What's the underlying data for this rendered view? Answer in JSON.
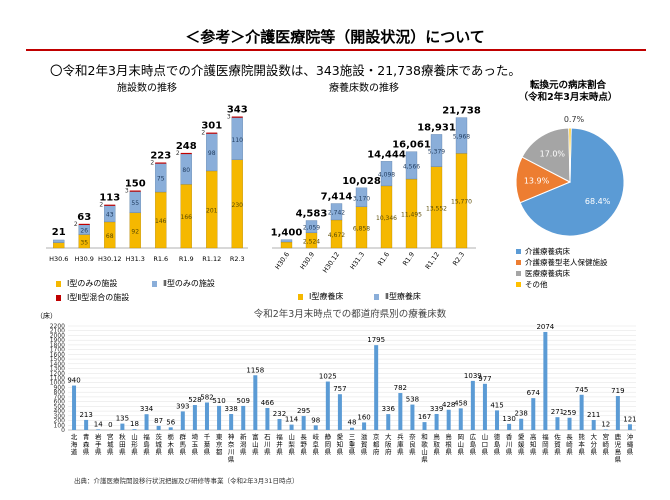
{
  "slide": {
    "title": "＜参考＞介護医療院等（開設状況）について",
    "lead": "〇令和2年3月末時点での介護医療院開設数は、343施設・21,738療養床であった。",
    "source": "出典：介護医療院開設移行状況把握及び研修等事業（令和2年3月31日時点）"
  },
  "colors": {
    "type1": "#f5b800",
    "type2": "#8aaed9",
    "mixed": "#c00000",
    "pie_kaigo_ryoyo": "#5b9bd5",
    "pie_rojin_hoken": "#ed7d31",
    "pie_iryo_ryoyo": "#a5a5a5",
    "pie_other": "#ffc000",
    "pref_bar": "#5b9bd5",
    "accent_rule": "#c00000"
  },
  "chart_data": [
    {
      "type": "bar",
      "title": "施設数の推移",
      "categories": [
        "H30.6",
        "H30.9",
        "H30.12",
        "H31.3",
        "R1.6",
        "R1.9",
        "R1.12",
        "R2.3"
      ],
      "series": [
        {
          "name": "Ⅰ型のみの施設",
          "values": [
            14,
            35,
            68,
            92,
            146,
            166,
            201,
            230
          ]
        },
        {
          "name": "Ⅱ型のみの施設",
          "values": [
            7,
            26,
            43,
            55,
            75,
            80,
            98,
            110
          ]
        },
        {
          "name": "Ⅰ型Ⅱ型混合の施設",
          "values": [
            0,
            2,
            2,
            3,
            2,
            2,
            2,
            3
          ]
        }
      ],
      "totals": [
        21,
        63,
        113,
        150,
        223,
        248,
        301,
        343
      ],
      "legend": [
        "Ⅰ型のみの施設",
        "Ⅱ型のみの施設",
        "Ⅰ型Ⅱ型混合の施設"
      ],
      "legend_position": "bottom",
      "ylim": [
        0,
        360
      ]
    },
    {
      "type": "bar",
      "title": "療養床数の推移",
      "categories": [
        "H30.6",
        "H30.9",
        "H30.12",
        "H31.3",
        "R1.6",
        "R1.9",
        "R1.12",
        "R2.3"
      ],
      "series": [
        {
          "name": "Ⅰ型療養床",
          "values": [
            1000,
            2524,
            4672,
            6858,
            10346,
            11495,
            13552,
            15770
          ]
        },
        {
          "name": "Ⅱ型療養床",
          "values": [
            400,
            2059,
            2742,
            3170,
            4098,
            4566,
            5379,
            5968
          ]
        }
      ],
      "totals_labels": [
        "1,400",
        "4,583",
        "7,414",
        "10,028",
        "14,444",
        "16,061",
        "18,931",
        "21,738"
      ],
      "series_labels": {
        "type1": [
          "",
          "2,524",
          "4,672",
          "6,858",
          "10,346",
          "11,495",
          "13,552",
          "15,770"
        ],
        "type2": [
          "",
          "2,059",
          "2,742",
          "3,170",
          "4,098",
          "4,566",
          "5,379",
          "5,968"
        ]
      },
      "totals": [
        1400,
        4583,
        7414,
        10028,
        14444,
        16061,
        18931,
        21738
      ],
      "legend": [
        "Ⅰ型療養床",
        "Ⅱ型療養床"
      ],
      "legend_position": "bottom",
      "ylim": [
        0,
        23000
      ]
    },
    {
      "type": "pie",
      "title": "転換元の病床割合\n（令和2年3月末時点）",
      "title_lines": [
        "転換元の病床割合",
        "（令和2年3月末時点）"
      ],
      "labels": [
        "介護療養病床",
        "介護療養型老人保健施設",
        "医療療養病床",
        "その他"
      ],
      "values": [
        68.4,
        13.9,
        17.0,
        0.7
      ],
      "value_labels": [
        "68.4%",
        "13.9%",
        "17.0%",
        "0.7%"
      ],
      "legend_position": "bottom"
    },
    {
      "type": "bar",
      "title": "令和2年3月末時点での都道府県別の療養床数",
      "ylabel": "（床）",
      "yticks": [
        0,
        100,
        200,
        300,
        400,
        500,
        600,
        700,
        800,
        900,
        1000,
        1100,
        1200,
        1300,
        1400,
        1500,
        1600,
        1700,
        1800,
        1900,
        2000,
        2100,
        2200
      ],
      "ylim": [
        0,
        2200
      ],
      "categories": [
        "北海道",
        "青森県",
        "岩手県",
        "宮城県",
        "秋田県",
        "山形県",
        "福島県",
        "茨城県",
        "栃木県",
        "群馬県",
        "埼玉県",
        "千葉県",
        "東京都",
        "神奈川県",
        "新潟県",
        "富山県",
        "石川県",
        "福井県",
        "山梨県",
        "長野県",
        "岐阜県",
        "静岡県",
        "愛知県",
        "三重県",
        "滋賀県",
        "京都府",
        "大阪府",
        "兵庫県",
        "奈良県",
        "和歌山県",
        "鳥取県",
        "島根県",
        "岡山県",
        "広島県",
        "山口県",
        "徳島県",
        "香川県",
        "愛媛県",
        "高知県",
        "福岡県",
        "佐賀県",
        "長崎県",
        "熊本県",
        "大分県",
        "宮崎県",
        "鹿児島県",
        "沖縄県"
      ],
      "values": [
        940,
        213,
        14,
        0,
        135,
        18,
        334,
        87,
        56,
        393,
        528,
        582,
        510,
        338,
        509,
        1158,
        466,
        232,
        114,
        295,
        98,
        1025,
        757,
        48,
        160,
        1795,
        336,
        782,
        538,
        167,
        339,
        428,
        458,
        1039,
        977,
        415,
        130,
        238,
        674,
        2074,
        271,
        259,
        745,
        211,
        12,
        719,
        121
      ]
    }
  ]
}
